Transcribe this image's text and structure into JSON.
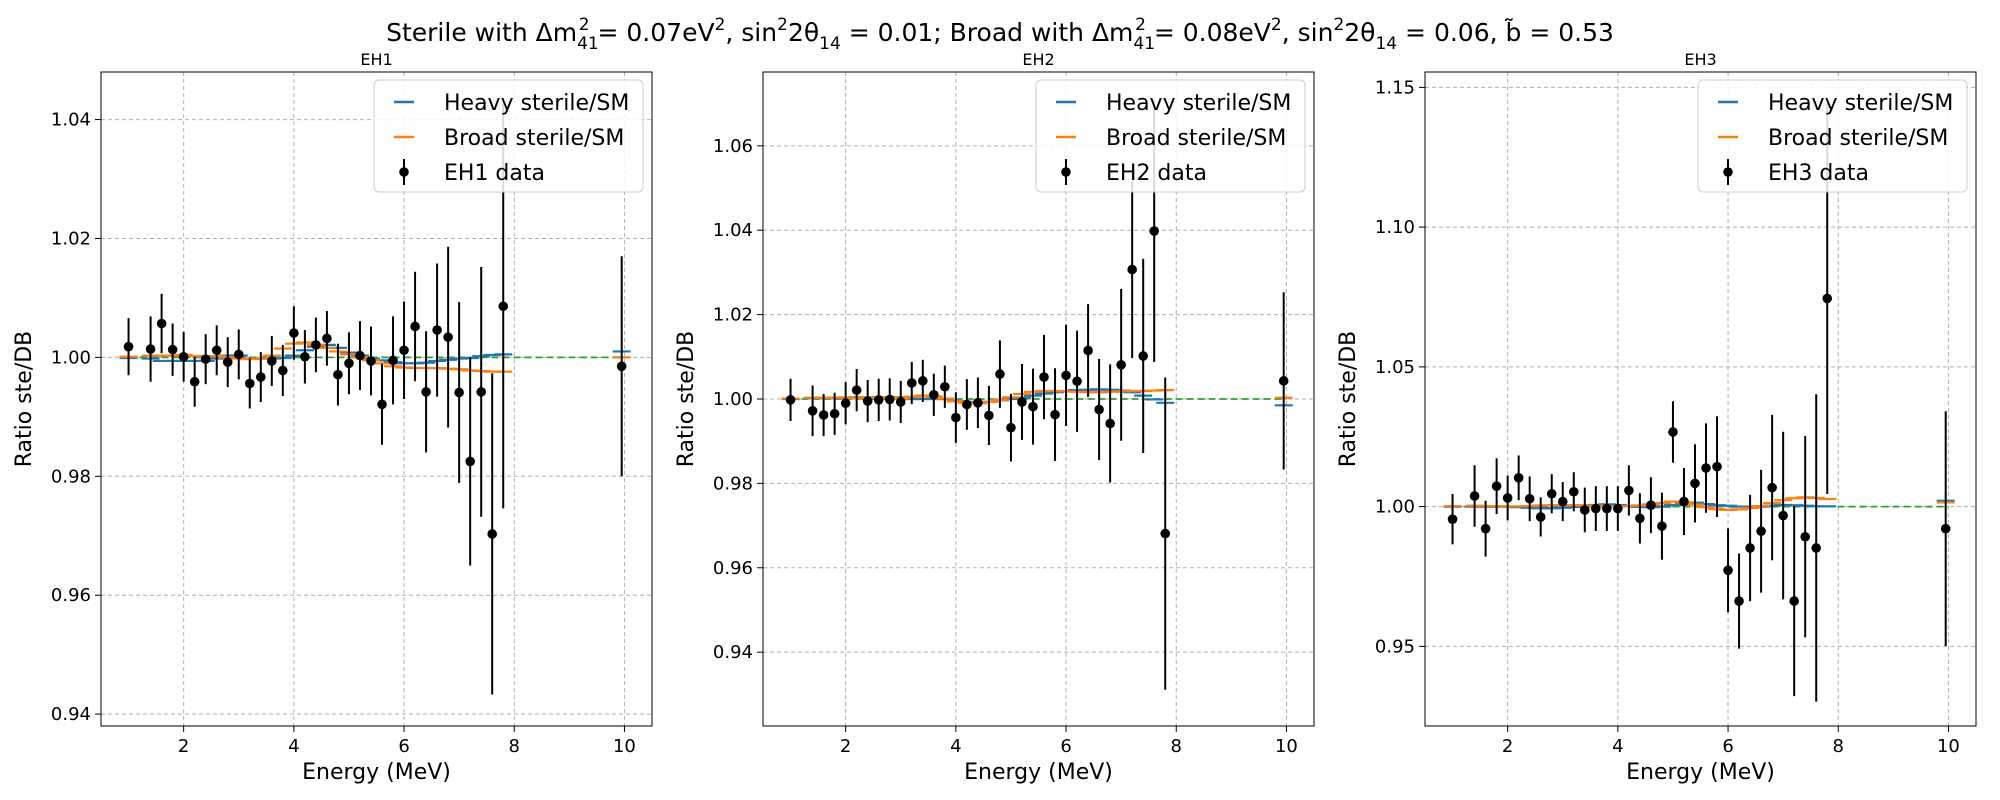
{
  "suptitle": {
    "p1": "Sterile with Δm",
    "p1_sub": "41",
    "p1_sup": "2",
    "p2": " = 0.07eV",
    "p2_sup": "2",
    "p3": ", sin",
    "p3_sup": "2",
    "p4": "2θ",
    "p4_sub": "14",
    "p5": " = 0.01; Broad with Δm",
    "p5_sub": "41",
    "p5_sup": "2",
    "p6": " = 0.08eV",
    "p6_sup": "2",
    "p7": ", sin",
    "p7_sup": "2",
    "p8": "2θ",
    "p8_sub": "14",
    "p9": " = 0.06, b̃ = 0.53"
  },
  "colors": {
    "heavy": "#1f77b4",
    "broad": "#ff7f0e",
    "ref": "#2ca02c",
    "data": "#000000",
    "grid": "#b0b0b0"
  },
  "chart_data": [
    {
      "type": "scatter",
      "title": "EH1",
      "xlabel": "Energy (MeV)",
      "ylabel": "Ratio ste/DB",
      "xlim": [
        0.5,
        10.5
      ],
      "ylim": [
        0.938,
        1.048
      ],
      "xticks": [
        2,
        4,
        6,
        8,
        10
      ],
      "yticks": [
        0.94,
        0.96,
        0.98,
        1.0,
        1.02,
        1.04
      ],
      "ytick_labels": [
        "0.94",
        "0.96",
        "0.98",
        "1.00",
        "1.02",
        "1.04"
      ],
      "grid": true,
      "legend": {
        "position": "top-right",
        "entries": [
          "Heavy sterile/SM",
          "Broad sterile/SM",
          "EH1 data"
        ]
      },
      "x": [
        1.0,
        1.4,
        1.6,
        1.8,
        2.0,
        2.2,
        2.4,
        2.6,
        2.8,
        3.0,
        3.2,
        3.4,
        3.6,
        3.8,
        4.0,
        4.2,
        4.4,
        4.6,
        4.8,
        5.0,
        5.2,
        5.4,
        5.6,
        5.8,
        6.0,
        6.2,
        6.4,
        6.6,
        6.8,
        7.0,
        7.2,
        7.4,
        7.6,
        7.8,
        9.95
      ],
      "data_y": [
        1.0018,
        1.0014,
        1.0057,
        1.0013,
        1.0001,
        0.9959,
        0.9997,
        1.0012,
        0.9992,
        1.0005,
        0.9956,
        0.9967,
        0.9994,
        0.9978,
        1.0041,
        1.0001,
        1.0021,
        1.0032,
        0.9971,
        0.999,
        1.0003,
        0.9994,
        0.9921,
        0.9995,
        1.0012,
        1.0052,
        0.9942,
        1.0046,
        1.0034,
        0.9941,
        0.9825,
        0.9942,
        0.9703,
        1.0086,
        0.9985
      ],
      "data_err": [
        0.0048,
        0.0055,
        0.005,
        0.0044,
        0.0042,
        0.0042,
        0.0042,
        0.0042,
        0.0042,
        0.0042,
        0.0042,
        0.0042,
        0.0042,
        0.0043,
        0.0045,
        0.0045,
        0.0046,
        0.0046,
        0.0052,
        0.0052,
        0.0058,
        0.0058,
        0.0068,
        0.0074,
        0.0082,
        0.0092,
        0.0102,
        0.0112,
        0.0152,
        0.0152,
        0.0175,
        0.021,
        0.027,
        0.034,
        0.0185
      ],
      "heavy_y": [
        0.9999,
        0.9998,
        0.9994,
        0.9994,
        0.9994,
        0.9994,
        0.9994,
        0.9998,
        1.0003,
        1.0003,
        0.9998,
        0.9998,
        0.9998,
        0.9999,
        1.0003,
        1.0012,
        1.0018,
        1.0021,
        1.0016,
        1.0008,
        1.0003,
        0.9998,
        0.9995,
        0.9992,
        0.999,
        0.999,
        0.9991,
        0.9994,
        0.9996,
        0.9998,
        0.9999,
        1.0002,
        1.0004,
        1.0005,
        1.001
      ],
      "broad_y": [
        1.0001,
        1.0003,
        1.0003,
        1.0003,
        1.0004,
        1.0002,
        1.0002,
        1.0002,
        1.0,
        0.9998,
        0.9997,
        0.9998,
        1.0003,
        1.0015,
        1.0023,
        1.0025,
        1.0021,
        1.0016,
        1.001,
        1.0005,
        1.0,
        0.9995,
        0.999,
        0.9985,
        0.9983,
        0.9982,
        0.9982,
        0.9982,
        0.9981,
        0.998,
        0.9978,
        0.9977,
        0.9976,
        0.9976,
        1.0
      ],
      "ref_y": 1.0
    },
    {
      "type": "scatter",
      "title": "EH2",
      "xlabel": "Energy (MeV)",
      "ylabel": "Ratio ste/DB",
      "xlim": [
        0.5,
        10.5
      ],
      "ylim": [
        0.9225,
        1.0775
      ],
      "xticks": [
        2,
        4,
        6,
        8,
        10
      ],
      "yticks": [
        0.94,
        0.96,
        0.98,
        1.0,
        1.02,
        1.04,
        1.06
      ],
      "ytick_labels": [
        "0.94",
        "0.96",
        "0.98",
        "1.00",
        "1.02",
        "1.04",
        "1.06"
      ],
      "grid": true,
      "legend": {
        "position": "top-right",
        "entries": [
          "Heavy sterile/SM",
          "Broad sterile/SM",
          "EH2 data"
        ]
      },
      "x": [
        1.0,
        1.4,
        1.6,
        1.8,
        2.0,
        2.2,
        2.4,
        2.6,
        2.8,
        3.0,
        3.2,
        3.4,
        3.6,
        3.8,
        4.0,
        4.2,
        4.4,
        4.6,
        4.8,
        5.0,
        5.2,
        5.4,
        5.6,
        5.8,
        6.0,
        6.2,
        6.4,
        6.6,
        6.8,
        7.0,
        7.2,
        7.4,
        7.6,
        7.8,
        9.95
      ],
      "data_y": [
        0.9998,
        0.9972,
        0.9962,
        0.9965,
        0.999,
        1.0021,
        0.9995,
        0.9998,
        0.9999,
        0.9993,
        1.0038,
        1.0043,
        1.001,
        1.0029,
        0.9956,
        0.9987,
        0.9991,
        0.9961,
        1.0059,
        0.9932,
        0.9993,
        0.9982,
        1.0052,
        0.9963,
        1.0056,
        1.0042,
        1.0115,
        0.9975,
        0.9942,
        1.0081,
        1.0307,
        1.0102,
        1.0398,
        0.9681,
        1.0043
      ],
      "data_err": [
        0.005,
        0.006,
        0.005,
        0.005,
        0.005,
        0.005,
        0.005,
        0.005,
        0.005,
        0.005,
        0.005,
        0.005,
        0.005,
        0.005,
        0.006,
        0.006,
        0.006,
        0.007,
        0.008,
        0.008,
        0.009,
        0.009,
        0.01,
        0.011,
        0.012,
        0.012,
        0.011,
        0.012,
        0.014,
        0.018,
        0.021,
        0.023,
        0.031,
        0.037,
        0.021
      ],
      "heavy_y": [
        1.0,
        1.0002,
        1.0002,
        1.0002,
        1.0002,
        1.0004,
        1.0004,
        1.0004,
        1.0004,
        1.0004,
        1.0,
        1.0,
        1.0,
        1.0,
        0.9995,
        0.9993,
        0.9993,
        0.9993,
        0.9997,
        1.0,
        1.0003,
        1.0008,
        1.0013,
        1.0016,
        1.0018,
        1.0021,
        1.0022,
        1.0023,
        1.0022,
        1.002,
        1.0016,
        1.0008,
        0.9999,
        0.9991,
        0.9985
      ],
      "broad_y": [
        1.0001,
        1.0003,
        1.0003,
        1.0003,
        1.0004,
        1.0002,
        1.0004,
        1.0004,
        1.0003,
        1.0001,
        1.0005,
        1.0008,
        1.0006,
        1.0001,
        0.9995,
        0.9991,
        0.999,
        0.9993,
        0.9998,
        1.0004,
        1.0012,
        1.0017,
        1.0019,
        1.0019,
        1.0018,
        1.0017,
        1.0016,
        1.0016,
        1.0017,
        1.0018,
        1.0019,
        1.0019,
        1.002,
        1.0021,
        1.0003
      ],
      "ref_y": 1.0
    },
    {
      "type": "scatter",
      "title": "EH3",
      "xlabel": "Energy (MeV)",
      "ylabel": "Ratio ste/DB",
      "xlim": [
        0.5,
        10.5
      ],
      "ylim": [
        0.9215,
        1.1555
      ],
      "xticks": [
        2,
        4,
        6,
        8,
        10
      ],
      "yticks": [
        0.95,
        1.0,
        1.05,
        1.1,
        1.15
      ],
      "ytick_labels": [
        "0.95",
        "1.00",
        "1.05",
        "1.10",
        "1.15"
      ],
      "grid": true,
      "legend": {
        "position": "top-right",
        "entries": [
          "Heavy sterile/SM",
          "Broad sterile/SM",
          "EH3 data"
        ]
      },
      "x": [
        1.0,
        1.4,
        1.6,
        1.8,
        2.0,
        2.2,
        2.4,
        2.6,
        2.8,
        3.0,
        3.2,
        3.4,
        3.6,
        3.8,
        4.0,
        4.2,
        4.4,
        4.6,
        4.8,
        5.0,
        5.2,
        5.4,
        5.6,
        5.8,
        6.0,
        6.2,
        6.4,
        6.6,
        6.8,
        7.0,
        7.2,
        7.4,
        7.6,
        7.8,
        9.95
      ],
      "data_y": [
        0.9955,
        1.0038,
        0.9921,
        1.0073,
        1.0031,
        1.0103,
        1.0028,
        0.9963,
        1.0046,
        1.0018,
        1.0053,
        0.9988,
        0.9993,
        0.9993,
        0.9993,
        1.0058,
        0.9958,
        1.0005,
        0.993,
        1.0267,
        1.0018,
        1.0083,
        1.0138,
        1.0143,
        0.9772,
        0.9662,
        0.9852,
        0.9912,
        1.0068,
        0.9968,
        0.9662,
        0.9892,
        0.9852,
        1.0745,
        0.9921
      ],
      "data_err": [
        0.009,
        0.011,
        0.01,
        0.01,
        0.008,
        0.008,
        0.008,
        0.007,
        0.007,
        0.007,
        0.007,
        0.008,
        0.008,
        0.008,
        0.008,
        0.009,
        0.009,
        0.01,
        0.012,
        0.011,
        0.012,
        0.014,
        0.016,
        0.018,
        0.015,
        0.017,
        0.019,
        0.022,
        0.026,
        0.03,
        0.034,
        0.036,
        0.055,
        0.07,
        0.042
      ],
      "heavy_y": [
        1.0,
        1.0,
        1.0,
        1.0,
        1.0,
        0.9998,
        0.9996,
        0.9994,
        0.9994,
        0.9996,
        0.9999,
        1.0003,
        1.0006,
        1.0008,
        1.0006,
        1.0002,
        0.9999,
        0.9998,
        1.0,
        1.0006,
        1.0012,
        1.0014,
        1.0009,
        1.0005,
        1.0003,
        1.0,
        0.9999,
        1.0,
        1.0003,
        1.0006,
        1.0005,
        1.0003,
        1.0001,
        1.0001,
        1.0021
      ],
      "broad_y": [
        1.0002,
        1.0003,
        1.0002,
        1.0002,
        1.0001,
        1.0001,
        1.0002,
        1.0004,
        1.0005,
        1.0005,
        1.0005,
        1.0004,
        1.0003,
        1.0002,
        1.0002,
        1.0002,
        1.0004,
        1.0008,
        1.0013,
        1.0018,
        1.0015,
        1.0007,
        0.9998,
        0.9991,
        0.9988,
        0.999,
        0.9995,
        1.0002,
        1.0013,
        1.0023,
        1.003,
        1.0033,
        1.0031,
        1.0027,
        1.0015
      ],
      "ref_y": 1.0
    }
  ]
}
